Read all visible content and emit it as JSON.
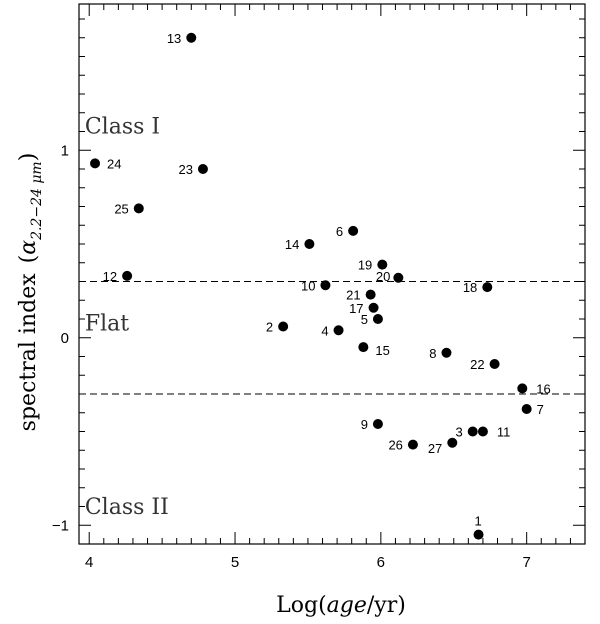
{
  "chart_data": {
    "type": "scatter",
    "title": "",
    "xlabel": "Log(age/yr)",
    "ylabel_main": "spectral index",
    "ylabel_symbol": "α",
    "ylabel_sub": "2.2−24 μm",
    "xlim": [
      3.93,
      7.4
    ],
    "ylim": [
      -1.1,
      1.78
    ],
    "x_ticks": [
      4,
      5,
      6,
      7
    ],
    "y_ticks": [
      -1,
      0,
      1
    ],
    "grid": false,
    "regions": [
      {
        "label": "Class I",
        "x": 3.97,
        "y": 1.09
      },
      {
        "label": "Flat",
        "x": 3.97,
        "y": 0.04
      },
      {
        "label": "Class II",
        "x": 3.97,
        "y": -0.94
      }
    ],
    "reference_lines_y": [
      0.3,
      -0.3
    ],
    "points": [
      {
        "id": "1",
        "x": 6.67,
        "y": -1.05
      },
      {
        "id": "2",
        "x": 5.33,
        "y": 0.06
      },
      {
        "id": "3",
        "x": 6.63,
        "y": -0.5
      },
      {
        "id": "4",
        "x": 5.71,
        "y": 0.04
      },
      {
        "id": "5",
        "x": 5.98,
        "y": 0.1
      },
      {
        "id": "6",
        "x": 5.81,
        "y": 0.57
      },
      {
        "id": "7",
        "x": 7.0,
        "y": -0.38
      },
      {
        "id": "8",
        "x": 6.45,
        "y": -0.08
      },
      {
        "id": "9",
        "x": 5.98,
        "y": -0.46
      },
      {
        "id": "10",
        "x": 5.62,
        "y": 0.28
      },
      {
        "id": "11",
        "x": 6.7,
        "y": -0.5
      },
      {
        "id": "12",
        "x": 4.26,
        "y": 0.33
      },
      {
        "id": "13",
        "x": 4.7,
        "y": 1.6
      },
      {
        "id": "14",
        "x": 5.51,
        "y": 0.5
      },
      {
        "id": "15",
        "x": 5.88,
        "y": -0.05
      },
      {
        "id": "16",
        "x": 6.97,
        "y": -0.27
      },
      {
        "id": "17",
        "x": 5.95,
        "y": 0.16
      },
      {
        "id": "18",
        "x": 6.73,
        "y": 0.27
      },
      {
        "id": "19",
        "x": 6.01,
        "y": 0.39
      },
      {
        "id": "20",
        "x": 6.12,
        "y": 0.32
      },
      {
        "id": "21",
        "x": 5.93,
        "y": 0.23
      },
      {
        "id": "22",
        "x": 6.78,
        "y": -0.14
      },
      {
        "id": "23",
        "x": 4.78,
        "y": 0.9
      },
      {
        "id": "24",
        "x": 4.04,
        "y": 0.93
      },
      {
        "id": "25",
        "x": 4.34,
        "y": 0.69
      },
      {
        "id": "26",
        "x": 6.22,
        "y": -0.57
      },
      {
        "id": "27",
        "x": 6.49,
        "y": -0.56
      }
    ]
  }
}
